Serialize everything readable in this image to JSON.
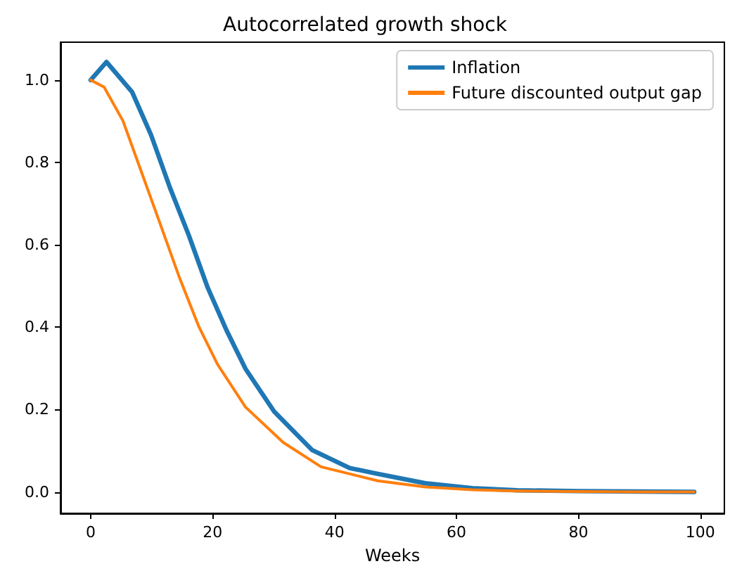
{
  "chart_data": {
    "type": "line",
    "title": "Autocorrelated growth shock",
    "xlabel": "Weeks",
    "series": [
      {
        "name": "Inflation",
        "color": "#1f77b4",
        "x": [
          0,
          2.6,
          6.8,
          9.9,
          13,
          16.1,
          19.2,
          22.3,
          25.4,
          30.1,
          36.3,
          42.5,
          47.1,
          54.9,
          62.6,
          70,
          80,
          90,
          99
        ],
        "values": [
          1.0,
          1.044,
          0.971,
          0.867,
          0.739,
          0.623,
          0.496,
          0.392,
          0.299,
          0.195,
          0.102,
          0.058,
          0.044,
          0.021,
          0.009,
          0.004,
          0.002,
          0.001,
          0.0
        ]
      },
      {
        "name": "Future discounted output gap",
        "color": "#ff7f0e",
        "x": [
          0,
          2.2,
          5.3,
          8.4,
          11.5,
          14.6,
          17.7,
          20.8,
          25.4,
          31.6,
          37.8,
          47.1,
          54.9,
          62.6,
          70,
          80,
          90,
          99
        ],
        "values": [
          1.0,
          0.983,
          0.901,
          0.774,
          0.647,
          0.519,
          0.403,
          0.31,
          0.206,
          0.12,
          0.061,
          0.027,
          0.012,
          0.005,
          0.002,
          0.001,
          0.0,
          0.0
        ]
      }
    ],
    "xlim": [
      -4.95,
      103.95
    ],
    "xticks": [
      0,
      20,
      40,
      60,
      80,
      100
    ],
    "ylim": [
      -0.052,
      1.092
    ],
    "yticks": [
      {
        "value": 0,
        "label": "0.0"
      },
      {
        "value": 0.2,
        "label": "0.2"
      },
      {
        "value": 0.4,
        "label": "0.4"
      },
      {
        "value": 0.6,
        "label": "0.6"
      },
      {
        "value": 0.8,
        "label": "0.8"
      },
      {
        "value": 1,
        "label": "1.0"
      }
    ],
    "legend": "top right",
    "grid": false,
    "marker": "none",
    "line_style": "solid"
  }
}
